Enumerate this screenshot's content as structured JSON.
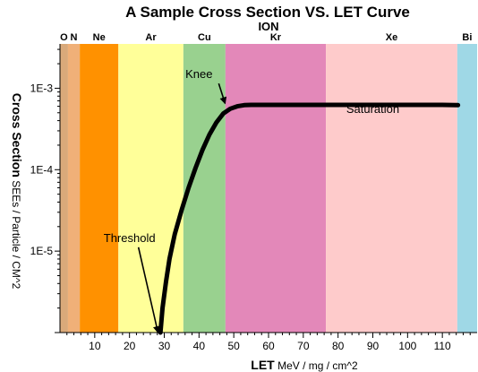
{
  "chart_data": {
    "type": "line",
    "title": "A Sample Cross Section VS. LET Curve",
    "top_axis_title": "ION",
    "xlabel_bold": "LET",
    "xlabel_unit": " MeV / mg / cm^2",
    "ylabel_bold": "Cross Section",
    "ylabel_unit": " SEEs / Particle / CM^2",
    "xlim": [
      0,
      120
    ],
    "ylim": [
      1e-06,
      0.0035
    ],
    "yscale": "log",
    "x_ticks": [
      10,
      20,
      30,
      40,
      50,
      60,
      70,
      80,
      90,
      100,
      110
    ],
    "y_ticks": [
      {
        "value": 0.001,
        "label": "1E-3"
      },
      {
        "value": 0.0001,
        "label": "1E-4"
      },
      {
        "value": 1e-05,
        "label": "1E-5"
      }
    ],
    "ion_bands": [
      {
        "ion": "O",
        "from": 0,
        "to": 2.3,
        "color": "#d9a97a"
      },
      {
        "ion": "N",
        "from": 2.3,
        "to": 5.7,
        "color": "#f0b078"
      },
      {
        "ion": "Ne",
        "from": 5.7,
        "to": 16.8,
        "color": "#ff9100"
      },
      {
        "ion": "Ar",
        "from": 16.8,
        "to": 35.5,
        "color": "#ffff99"
      },
      {
        "ion": "Cu",
        "from": 35.5,
        "to": 47.6,
        "color": "#99d18f"
      },
      {
        "ion": "Kr",
        "from": 47.6,
        "to": 76.5,
        "color": "#e388b9"
      },
      {
        "ion": "Xe",
        "from": 76.5,
        "to": 114.3,
        "color": "#fecbcb"
      },
      {
        "ion": "Bi",
        "from": 114.3,
        "to": 150,
        "color": "#9fd8e6"
      }
    ],
    "series": [
      {
        "x": [
          28.9,
          29.5,
          30.5,
          31.5,
          33,
          35,
          37,
          39,
          41,
          43,
          45,
          47,
          49,
          51,
          53,
          55,
          60,
          70,
          80,
          90,
          100,
          110,
          114.5
        ],
        "y": [
          1e-06,
          2e-06,
          4.2e-06,
          8e-06,
          1.6e-05,
          3.2e-05,
          6e-05,
          0.000105,
          0.000175,
          0.00027,
          0.00038,
          0.00049,
          0.00056,
          0.0006,
          0.00062,
          0.000625,
          0.000625,
          0.000625,
          0.000625,
          0.000625,
          0.000625,
          0.000625,
          0.00062
        ]
      }
    ],
    "annotations": [
      {
        "text": "Knee",
        "x": 40,
        "y": 0.00133,
        "arrow_to": [
          47.5,
          0.00065
        ]
      },
      {
        "text": "Saturation",
        "x": 90,
        "y": 0.0005
      },
      {
        "text": "Threshold",
        "x": 20,
        "y": 1.3e-05,
        "arrow_to": [
          28.2,
          1e-06
        ]
      }
    ],
    "grid": false,
    "legend": "none",
    "colors": {
      "curve": "#000000"
    }
  }
}
